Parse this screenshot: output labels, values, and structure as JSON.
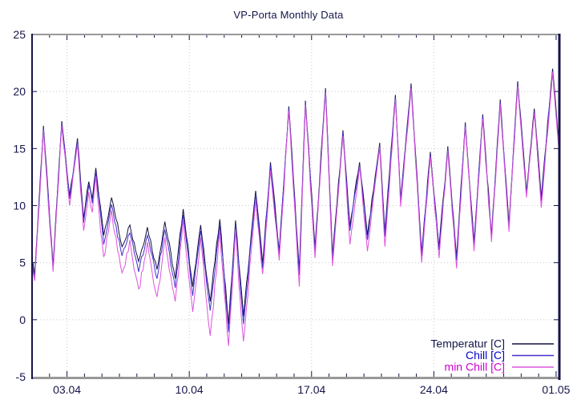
{
  "window": {
    "title": "VP-Porta Monthly Data"
  },
  "colors": {
    "background": "#ffffff",
    "axis_navy": "#15154a",
    "border_gray": "#999999",
    "grid_gray": "#c9c9c9",
    "title_text": "#15154a",
    "tick_label_text": "#15154a"
  },
  "chart_data": {
    "type": "line",
    "title": "VP-Porta Monthly Data",
    "xlabel": "",
    "ylabel": "",
    "ylim": [
      -5,
      25
    ],
    "xlim_days": [
      0,
      30.14
    ],
    "grid": true,
    "legend_position": "bottom-right-inside",
    "y_ticks": [
      {
        "value": 25,
        "label": "25"
      },
      {
        "value": 20,
        "label": "20"
      },
      {
        "value": 15,
        "label": "15"
      },
      {
        "value": 10,
        "label": "10"
      },
      {
        "value": 5,
        "label": "5"
      },
      {
        "value": 0,
        "label": "0"
      },
      {
        "value": -5,
        "label": "-5"
      }
    ],
    "x_major_ticks": [
      {
        "day": 2,
        "label": "03.04"
      },
      {
        "day": 9,
        "label": "10.04"
      },
      {
        "day": 16,
        "label": "17.04"
      },
      {
        "day": 23,
        "label": "24.04"
      },
      {
        "day": 30,
        "label": "01.05"
      }
    ],
    "grid_x_days": [
      2,
      9,
      16,
      23
    ],
    "grid_y_values": [
      0,
      5,
      10,
      15,
      20
    ],
    "x_minor_tick_interval_days": 1,
    "noise_texture": {
      "amplitude": 0.3,
      "step_days": 0.09,
      "minchill_cold_extra": 0.7,
      "cold_period_days": [
        3.5,
        13.5
      ]
    },
    "series": [
      {
        "name": "Temperatur [C]",
        "color": "#12123c",
        "label_color": "#15154a",
        "points": [
          [
            0,
            5.2
          ],
          [
            0.15,
            3.9
          ],
          [
            0.65,
            17
          ],
          [
            1.2,
            4.7
          ],
          [
            1.7,
            17.4
          ],
          [
            2.15,
            10.9
          ],
          [
            2.6,
            15.9
          ],
          [
            2.95,
            8.9
          ],
          [
            3.25,
            12.1
          ],
          [
            3.45,
            10.6
          ],
          [
            3.65,
            13.3
          ],
          [
            4.1,
            7.4
          ],
          [
            4.55,
            10.7
          ],
          [
            5.15,
            6.4
          ],
          [
            5.6,
            8.3
          ],
          [
            6.1,
            5.1
          ],
          [
            6.6,
            8.1
          ],
          [
            7.15,
            4.4
          ],
          [
            7.6,
            8.6
          ],
          [
            8.2,
            3.6
          ],
          [
            8.65,
            9.7
          ],
          [
            9.2,
            2.9
          ],
          [
            9.65,
            8.3
          ],
          [
            10.2,
            1.6
          ],
          [
            10.75,
            8.8
          ],
          [
            11.25,
            -0.4
          ],
          [
            11.65,
            8.7
          ],
          [
            12.1,
            0.3
          ],
          [
            12.8,
            11.3
          ],
          [
            13.2,
            4.9
          ],
          [
            13.65,
            13.8
          ],
          [
            14.15,
            6
          ],
          [
            14.7,
            18.7
          ],
          [
            15.3,
            4.3
          ],
          [
            15.65,
            19.2
          ],
          [
            16.2,
            6.3
          ],
          [
            16.8,
            20.3
          ],
          [
            17.2,
            5.6
          ],
          [
            17.8,
            16.6
          ],
          [
            18.2,
            8.2
          ],
          [
            18.75,
            13.8
          ],
          [
            19.2,
            7.4
          ],
          [
            19.9,
            15.5
          ],
          [
            20.2,
            7.7
          ],
          [
            20.8,
            19.7
          ],
          [
            21.1,
            10.6
          ],
          [
            21.7,
            20.7
          ],
          [
            22.3,
            5.9
          ],
          [
            22.8,
            14.7
          ],
          [
            23.3,
            6.4
          ],
          [
            23.8,
            15.2
          ],
          [
            24.3,
            5.5
          ],
          [
            24.8,
            17.3
          ],
          [
            25.3,
            6.8
          ],
          [
            25.8,
            18
          ],
          [
            26.3,
            7.4
          ],
          [
            26.8,
            19.3
          ],
          [
            27.3,
            8.3
          ],
          [
            27.8,
            20.9
          ],
          [
            28.3,
            11.2
          ],
          [
            28.75,
            18.5
          ],
          [
            29.15,
            10.7
          ],
          [
            29.8,
            22
          ],
          [
            30.14,
            15.6
          ]
        ]
      },
      {
        "name": "Chill [C]",
        "color": "#4430d0",
        "label_color": "#0000cc",
        "points": [
          [
            0,
            5
          ],
          [
            0.15,
            3.7
          ],
          [
            0.65,
            16.8
          ],
          [
            1.2,
            4.5
          ],
          [
            1.7,
            17.2
          ],
          [
            2.15,
            10.6
          ],
          [
            2.6,
            15.7
          ],
          [
            2.95,
            8.5
          ],
          [
            3.25,
            11.8
          ],
          [
            3.45,
            10.2
          ],
          [
            3.65,
            13
          ],
          [
            4.1,
            6.6
          ],
          [
            4.55,
            10.1
          ],
          [
            5.15,
            5.6
          ],
          [
            5.6,
            7.6
          ],
          [
            6.1,
            4.2
          ],
          [
            6.6,
            7.4
          ],
          [
            7.15,
            3.6
          ],
          [
            7.6,
            7.9
          ],
          [
            8.2,
            2.8
          ],
          [
            8.65,
            9.2
          ],
          [
            9.2,
            2.1
          ],
          [
            9.65,
            7.8
          ],
          [
            10.2,
            0.8
          ],
          [
            10.75,
            8.3
          ],
          [
            11.25,
            -1.1
          ],
          [
            11.65,
            8.3
          ],
          [
            12.1,
            -0.4
          ],
          [
            12.8,
            11
          ],
          [
            13.2,
            4.5
          ],
          [
            13.65,
            13.5
          ],
          [
            14.15,
            5.7
          ],
          [
            14.7,
            18.5
          ],
          [
            15.3,
            3.9
          ],
          [
            15.65,
            19
          ],
          [
            16.2,
            6
          ],
          [
            16.8,
            20.1
          ],
          [
            17.2,
            5.2
          ],
          [
            17.8,
            16.4
          ],
          [
            18.2,
            7.8
          ],
          [
            18.75,
            13.6
          ],
          [
            19.2,
            7
          ],
          [
            19.9,
            15.3
          ],
          [
            20.2,
            7.3
          ],
          [
            20.8,
            19.5
          ],
          [
            21.1,
            10.3
          ],
          [
            21.7,
            20.5
          ],
          [
            22.3,
            5.6
          ],
          [
            22.8,
            14.5
          ],
          [
            23.3,
            6.1
          ],
          [
            23.8,
            15
          ],
          [
            24.3,
            5.2
          ],
          [
            24.8,
            17.1
          ],
          [
            25.3,
            6.5
          ],
          [
            25.8,
            17.8
          ],
          [
            26.3,
            7.2
          ],
          [
            26.8,
            19.1
          ],
          [
            27.3,
            8.1
          ],
          [
            27.8,
            20.7
          ],
          [
            28.3,
            11
          ],
          [
            28.75,
            18.3
          ],
          [
            29.15,
            10.4
          ],
          [
            29.8,
            21.8
          ],
          [
            30.14,
            15.4
          ]
        ]
      },
      {
        "name": "min Chill [C]",
        "color": "#dd55dd",
        "label_color": "#cc00cc",
        "points": [
          [
            0,
            4.6
          ],
          [
            0.15,
            3.4
          ],
          [
            0.65,
            16.6
          ],
          [
            1.2,
            4.2
          ],
          [
            1.7,
            17
          ],
          [
            2.15,
            10
          ],
          [
            2.6,
            15.4
          ],
          [
            2.95,
            7.8
          ],
          [
            3.25,
            11.2
          ],
          [
            3.45,
            9.4
          ],
          [
            3.65,
            12.6
          ],
          [
            4.1,
            5.5
          ],
          [
            4.55,
            9.6
          ],
          [
            5.15,
            4.1
          ],
          [
            5.6,
            7
          ],
          [
            6.1,
            2.7
          ],
          [
            6.6,
            6.8
          ],
          [
            7.15,
            2
          ],
          [
            7.6,
            7.2
          ],
          [
            8.2,
            1.6
          ],
          [
            8.65,
            8.8
          ],
          [
            9.2,
            0.7
          ],
          [
            9.65,
            7.2
          ],
          [
            10.2,
            -1.4
          ],
          [
            10.75,
            7.8
          ],
          [
            11.25,
            -2.3
          ],
          [
            11.65,
            7.9
          ],
          [
            12.1,
            -1.9
          ],
          [
            12.8,
            10.5
          ],
          [
            13.2,
            4
          ],
          [
            13.65,
            13.1
          ],
          [
            14.15,
            5.2
          ],
          [
            14.7,
            18.3
          ],
          [
            15.3,
            2.9
          ],
          [
            15.65,
            18.8
          ],
          [
            16.2,
            5.4
          ],
          [
            16.8,
            19.9
          ],
          [
            17.2,
            4.7
          ],
          [
            17.8,
            16.1
          ],
          [
            18.2,
            6.6
          ],
          [
            18.75,
            13.4
          ],
          [
            19.2,
            6
          ],
          [
            19.9,
            15.1
          ],
          [
            20.2,
            6.4
          ],
          [
            20.8,
            19.3
          ],
          [
            21.1,
            9.9
          ],
          [
            21.7,
            20.3
          ],
          [
            22.3,
            5
          ],
          [
            22.8,
            14.3
          ],
          [
            23.3,
            5.4
          ],
          [
            23.8,
            14.8
          ],
          [
            24.3,
            4.5
          ],
          [
            24.8,
            16.9
          ],
          [
            25.3,
            6
          ],
          [
            25.8,
            17.6
          ],
          [
            26.3,
            6.8
          ],
          [
            26.8,
            18.9
          ],
          [
            27.3,
            7.7
          ],
          [
            27.8,
            20.5
          ],
          [
            28.3,
            10.7
          ],
          [
            28.75,
            18.1
          ],
          [
            29.15,
            9.8
          ],
          [
            29.8,
            21.7
          ],
          [
            30.14,
            15.2
          ]
        ]
      }
    ]
  }
}
